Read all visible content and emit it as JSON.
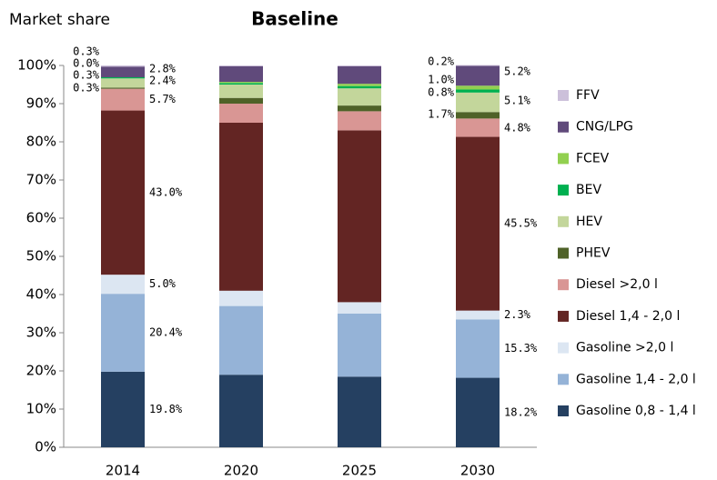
{
  "chart_data": {
    "type": "stacked_bar",
    "title": "Baseline",
    "y_label": "Market share",
    "categories": [
      "2014",
      "2020",
      "2025",
      "2030"
    ],
    "ylim": [
      0,
      100
    ],
    "yticks": [
      {
        "value": 0,
        "label": "0%"
      },
      {
        "value": 10,
        "label": "10%"
      },
      {
        "value": 20,
        "label": "20%"
      },
      {
        "value": 30,
        "label": "30%"
      },
      {
        "value": 40,
        "label": "40%"
      },
      {
        "value": 50,
        "label": "50%"
      },
      {
        "value": 60,
        "label": "60%"
      },
      {
        "value": 70,
        "label": "70%"
      },
      {
        "value": 80,
        "label": "80%"
      },
      {
        "value": 90,
        "label": "90%"
      },
      {
        "value": 100,
        "label": "100%"
      }
    ],
    "series": [
      {
        "name": "Gasoline 0,8 - 1,4 l",
        "color": "#254061",
        "values": [
          19.8,
          19,
          18.5,
          18.2
        ],
        "value_labels": [
          "19.8%",
          null,
          null,
          "18.2%"
        ]
      },
      {
        "name": "Gasoline 1,4 - 2,0 l",
        "color": "#95b3d7",
        "values": [
          20.4,
          18,
          16.5,
          15.3
        ],
        "value_labels": [
          "20.4%",
          null,
          null,
          "15.3%"
        ]
      },
      {
        "name": "Gasoline >2,0 l",
        "color": "#dce6f2",
        "values": [
          5.0,
          4,
          3,
          2.3
        ],
        "value_labels": [
          "5.0%",
          null,
          null,
          "2.3%"
        ]
      },
      {
        "name": "Diesel 1,4 - 2,0 l",
        "color": "#632523",
        "values": [
          43.0,
          44,
          45,
          45.5
        ],
        "value_labels": [
          "43.0%",
          null,
          null,
          "45.5%"
        ]
      },
      {
        "name": "Diesel >2,0 l",
        "color": "#d99694",
        "values": [
          5.7,
          5,
          5,
          4.8
        ],
        "value_labels": [
          "5.7%",
          null,
          null,
          "4.8%"
        ]
      },
      {
        "name": "PHEV",
        "color": "#4f6228",
        "values": [
          0.3,
          1.5,
          1.5,
          1.7
        ],
        "value_labels": [
          "0.3%",
          null,
          null,
          "1.7%"
        ]
      },
      {
        "name": "HEV",
        "color": "#c3d69b",
        "values": [
          2.4,
          3.5,
          4.5,
          5.1
        ],
        "value_labels": [
          "2.4%",
          null,
          null,
          "5.1%"
        ]
      },
      {
        "name": "BEV",
        "color": "#00b050",
        "values": [
          0.3,
          0.4,
          0.6,
          0.8
        ],
        "value_labels": [
          "0.3%",
          null,
          null,
          "0.8%"
        ]
      },
      {
        "name": "FCEV",
        "color": "#92d050",
        "values": [
          0.0,
          0.3,
          0.6,
          1.0
        ],
        "value_labels": [
          "0.0%",
          null,
          null,
          "1.0%"
        ]
      },
      {
        "name": "CNG/LPG",
        "color": "#604a7b",
        "values": [
          2.8,
          4.1,
          4.6,
          5.2
        ],
        "value_labels": [
          "2.8%",
          null,
          null,
          "5.2%"
        ]
      },
      {
        "name": "FFV",
        "color": "#ccc0da",
        "values": [
          0.3,
          0.2,
          0.2,
          0.2
        ],
        "value_labels": [
          "0.3%",
          null,
          null,
          "0.2%"
        ]
      }
    ]
  }
}
